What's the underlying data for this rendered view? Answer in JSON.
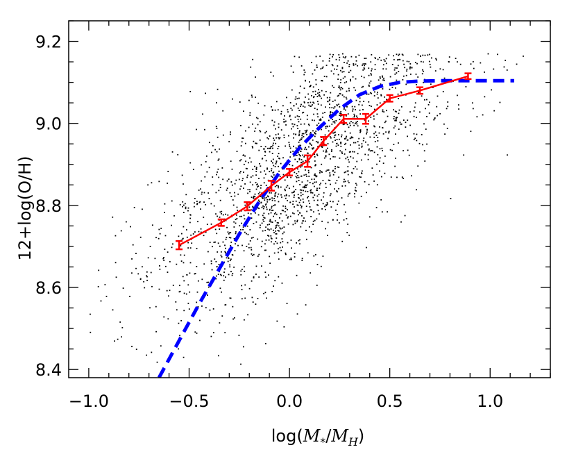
{
  "chart_data": {
    "type": "scatter",
    "xlabel_prefix": "log(",
    "xlabel_m1": "M",
    "xlabel_sub1": "*",
    "xlabel_slash": "/",
    "xlabel_m2": "M",
    "xlabel_sub2": "H",
    "xlabel_suffix": ")",
    "ylabel": "12+log(O/H)",
    "xlim": [
      -1.1,
      1.3
    ],
    "ylim": [
      8.38,
      9.25
    ],
    "x_ticks": [
      -1.0,
      -0.5,
      0.0,
      0.5,
      1.0
    ],
    "x_tick_labels": [
      "−1.0",
      "−0.5",
      "0.0",
      "0.5",
      "1.0"
    ],
    "y_ticks": [
      8.4,
      8.6,
      8.8,
      9.0,
      9.2
    ],
    "y_tick_labels": [
      "8.4",
      "8.6",
      "8.8",
      "9.0",
      "9.2"
    ],
    "grid": false,
    "series": [
      {
        "kind": "binned-median",
        "color": "#ff0000",
        "x": [
          -0.55,
          -0.34,
          -0.21,
          -0.09,
          0.0,
          0.09,
          0.17,
          0.27,
          0.38,
          0.5,
          0.65,
          0.89
        ],
        "y": [
          8.703,
          8.758,
          8.798,
          8.848,
          8.881,
          8.908,
          8.957,
          9.011,
          9.011,
          9.061,
          9.08,
          9.115
        ],
        "yerr": [
          0.01,
          0.008,
          0.01,
          0.012,
          0.008,
          0.014,
          0.01,
          0.01,
          0.012,
          0.008,
          0.008,
          0.007
        ]
      },
      {
        "kind": "model",
        "color": "#0000ff",
        "style": "dashed",
        "x": [
          -0.65,
          -0.55,
          -0.45,
          -0.35,
          -0.25,
          -0.15,
          -0.05,
          0.05,
          0.15,
          0.25,
          0.35,
          0.45,
          0.55,
          0.65,
          0.75,
          1.12
        ],
        "y": [
          8.38,
          8.47,
          8.56,
          8.645,
          8.73,
          8.81,
          8.88,
          8.94,
          8.99,
          9.035,
          9.07,
          9.09,
          9.1,
          9.103,
          9.104,
          9.104
        ]
      }
    ],
    "scatter_description": "about 2000 black dots centred on the red binned-median trend, spread roughly ±0.12 dex"
  },
  "colors": {
    "points": "#000000",
    "median": "#ff0000",
    "model": "#0000ff",
    "frame": "#000000"
  }
}
